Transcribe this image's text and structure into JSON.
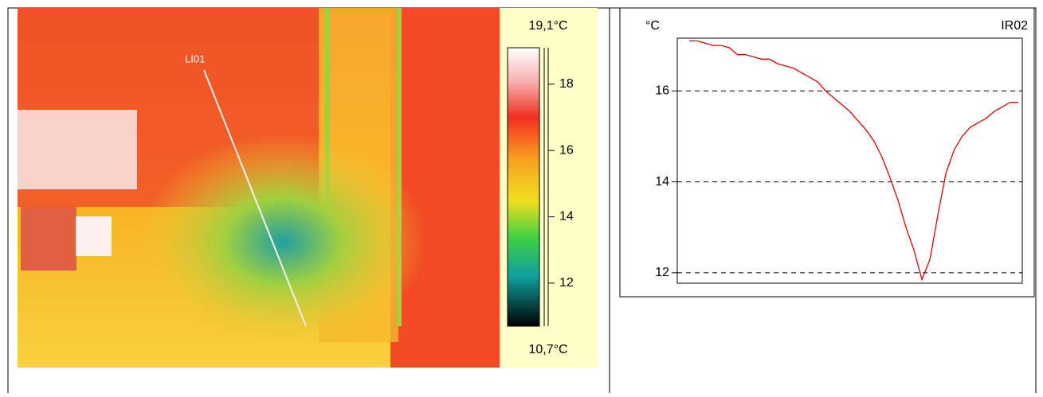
{
  "thermal_image": {
    "line_label": "LI01",
    "scale": {
      "max": {
        "value": 19.1,
        "label": "19,1°C"
      },
      "min": {
        "value": 10.7,
        "label": "10,7°C"
      },
      "ticks": [
        12,
        14,
        16,
        18
      ]
    }
  },
  "chart_data": {
    "type": "line",
    "title": "IR02",
    "y_label": "°C",
    "series": [
      {
        "name": "LI01",
        "color": "#e00000",
        "values": [
          17.1,
          17.1,
          17.05,
          17.0,
          17.0,
          16.95,
          16.8,
          16.8,
          16.75,
          16.7,
          16.7,
          16.6,
          16.55,
          16.5,
          16.4,
          16.3,
          16.2,
          16.0,
          15.85,
          15.7,
          15.55,
          15.35,
          15.15,
          14.9,
          14.55,
          14.1,
          13.6,
          13.0,
          12.5,
          11.85,
          12.3,
          13.3,
          14.2,
          14.7,
          15.0,
          15.2,
          15.3,
          15.4,
          15.55,
          15.65,
          15.75,
          15.75
        ]
      }
    ],
    "ylim": [
      11.77,
      17.16
    ],
    "yticks": [
      12,
      14,
      16
    ],
    "grid": true
  }
}
